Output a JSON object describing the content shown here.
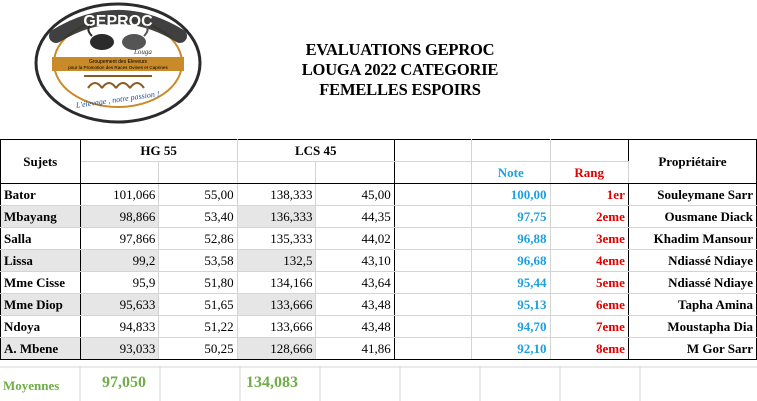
{
  "logo": {
    "name": "GEPROC",
    "city": "Louga",
    "line1": "Groupement des Eleveurs",
    "line2": "pour la Promotion des Races Ovines et Caprines",
    "slogan": "L'élevage , notre passion !",
    "ring_color": "#2b2b2b",
    "accent_color": "#c98a2a"
  },
  "title": {
    "line1": "EVALUATIONS GEPROC",
    "line2": "LOUGA 2022  CATEGORIE",
    "line3": "FEMELLES ESPOIRS"
  },
  "headers": {
    "sujets": "Sujets",
    "hg": "HG 55",
    "lcs": "LCS 45",
    "note": "Note",
    "rang": "Rang",
    "proprietaire": "Propriétaire"
  },
  "rows": [
    {
      "sujet": "Bator",
      "hg": "101,066",
      "hg_score": "55,00",
      "lcs": "138,333",
      "lcs_score": "45,00",
      "note": "100,00",
      "rang": "1er",
      "owner": "Souleymane Sarr"
    },
    {
      "sujet": "Mbayang",
      "hg": "98,866",
      "hg_score": "53,40",
      "lcs": "136,333",
      "lcs_score": "44,35",
      "note": "97,75",
      "rang": "2eme",
      "owner": "Ousmane Diack"
    },
    {
      "sujet": "Salla",
      "hg": "97,866",
      "hg_score": "52,86",
      "lcs": "135,333",
      "lcs_score": "44,02",
      "note": "96,88",
      "rang": "3eme",
      "owner": "Khadim Mansour"
    },
    {
      "sujet": "Lissa",
      "hg": "99,2",
      "hg_score": "53,58",
      "lcs": "132,5",
      "lcs_score": "43,10",
      "note": "96,68",
      "rang": "4eme",
      "owner": "Ndiassé Ndiaye"
    },
    {
      "sujet": "Mme Cisse",
      "hg": "95,9",
      "hg_score": "51,80",
      "lcs": "134,166",
      "lcs_score": "43,64",
      "note": "95,44",
      "rang": "5eme",
      "owner": "Ndiassé Ndiaye"
    },
    {
      "sujet": "Mme Diop",
      "hg": "95,633",
      "hg_score": "51,65",
      "lcs": "133,666",
      "lcs_score": "43,48",
      "note": "95,13",
      "rang": "6eme",
      "owner": "Tapha Amina"
    },
    {
      "sujet": "Ndoya",
      "hg": "94,833",
      "hg_score": "51,22",
      "lcs": "133,666",
      "lcs_score": "43,48",
      "note": "94,70",
      "rang": "7eme",
      "owner": "Moustapha Dia"
    },
    {
      "sujet": "A. Mbene",
      "hg": "93,033",
      "hg_score": "50,25",
      "lcs": "128,666",
      "lcs_score": "41,86",
      "note": "92,10",
      "rang": "8eme",
      "owner": "M Gor Sarr"
    }
  ],
  "moyennes": {
    "label": "Moyennes",
    "hg": "97,050",
    "lcs": "134,083"
  },
  "colors": {
    "note": "#1ea0e0",
    "rang": "#e00000",
    "moyennes": "#70ad47",
    "shade": "#e6e6e6"
  }
}
